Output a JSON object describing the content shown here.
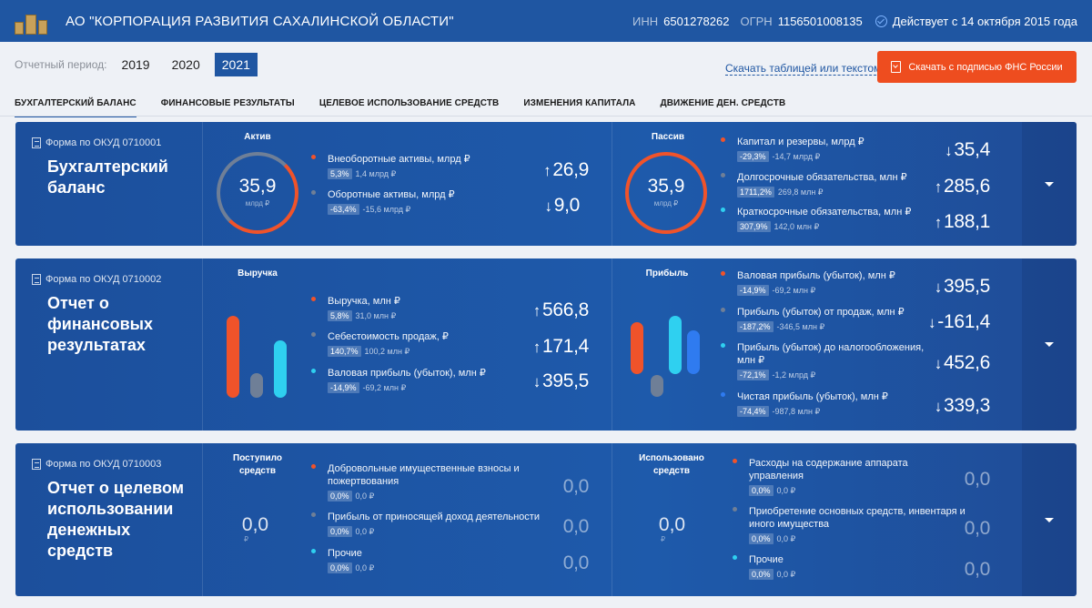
{
  "header": {
    "title": "АО \"КОРПОРАЦИЯ РАЗВИТИЯ САХАЛИНСКОЙ ОБЛАСТИ\"",
    "inn_label": "ИНН",
    "inn": "6501278262",
    "ogrn_label": "ОГРН",
    "ogrn": "1156501008135",
    "status": "Действует с 14 октября 2015 года"
  },
  "period": {
    "label": "Отчетный период:",
    "years": [
      "2019",
      "2020",
      "2021"
    ],
    "selected": "2021"
  },
  "download": {
    "link": "Скачать таблицей или текстом",
    "button": "Скачать с подписью ФНС России"
  },
  "tabs": [
    "БУХГАЛТЕРСКИЙ БАЛАНС",
    "ФИНАНСОВЫЕ РЕЗУЛЬТАТЫ",
    "ЦЕЛЕВОЕ ИСПОЛЬЗОВАНИЕ СРЕДСТВ",
    "ИЗМЕНЕНИЯ КАПИТАЛА",
    "ДВИЖЕНИЕ ДЕН. СРЕДСТВ"
  ],
  "colors": {
    "accent": "#1f56a2",
    "orange": "#f0532a",
    "grey": "#6f7f97",
    "cyan": "#2fd0f0",
    "blue": "#2f7bf0"
  },
  "cards": [
    {
      "okud": "Форма по ОКУД 0710001",
      "title": "Бухгалтерский баланс",
      "p1": {
        "title": "Актив",
        "ring_value": "35,9",
        "ring_unit": "млрд ₽",
        "items": [
          {
            "name": "Внеоборотные активы, млрд ₽",
            "badge": "5,3%",
            "sub": "1,4 млрд ₽",
            "arrow": "↑",
            "value": "26,9",
            "dot": "orange"
          },
          {
            "name": "Оборотные активы, млрд ₽",
            "badge": "-63,4%",
            "sub": "-15,6 млрд ₽",
            "arrow": "↓",
            "value": "9,0",
            "dot": "grey"
          }
        ]
      },
      "p2": {
        "title": "Пассив",
        "ring_value": "35,9",
        "ring_unit": "млрд ₽",
        "items": [
          {
            "name": "Капитал и резервы, млрд ₽",
            "badge": "-29,3%",
            "sub": "-14,7 млрд ₽",
            "arrow": "↓",
            "value": "35,4",
            "dot": "orange"
          },
          {
            "name": "Долгосрочные обязательства, млн ₽",
            "badge": "1711,2%",
            "sub": "269,8 млн ₽",
            "arrow": "↑",
            "value": "285,6",
            "dot": "grey"
          },
          {
            "name": "Краткосрочные обязательства, млн ₽",
            "badge": "307,9%",
            "sub": "142,0 млн ₽",
            "arrow": "↑",
            "value": "188,1",
            "dot": "cyan"
          }
        ]
      }
    },
    {
      "okud": "Форма по ОКУД 0710002",
      "title": "Отчет о финансовых результатах",
      "p1": {
        "title": "Выручка",
        "items": [
          {
            "name": "Выручка, млн ₽",
            "badge": "5,8%",
            "sub": "31,0 млн ₽",
            "arrow": "↑",
            "value": "566,8",
            "dot": "orange"
          },
          {
            "name": "Себестоимость продаж, ₽",
            "badge": "140,7%",
            "sub": "100,2 млн ₽",
            "arrow": "↑",
            "value": "171,4",
            "dot": "grey"
          },
          {
            "name": "Валовая прибыль (убыток), млн ₽",
            "badge": "-14,9%",
            "sub": "-69,2 млн ₽",
            "arrow": "↓",
            "value": "395,5",
            "dot": "cyan"
          }
        ]
      },
      "p2": {
        "title": "Прибыль",
        "items": [
          {
            "name": "Валовая прибыль (убыток), млн ₽",
            "badge": "-14,9%",
            "sub": "-69,2 млн ₽",
            "arrow": "↓",
            "value": "395,5",
            "dot": "orange"
          },
          {
            "name": "Прибыль (убыток) от продаж, млн ₽",
            "badge": "-187,2%",
            "sub": "-346,5 млн ₽",
            "arrow": "↓",
            "value": "-161,4",
            "dot": "grey"
          },
          {
            "name": "Прибыль (убыток) до налогообложения, млн ₽",
            "badge": "-72,1%",
            "sub": "-1,2 млрд ₽",
            "arrow": "↓",
            "value": "452,6",
            "dot": "cyan"
          },
          {
            "name": "Чистая прибыль (убыток), млн ₽",
            "badge": "-74,4%",
            "sub": "-987,8 млн ₽",
            "arrow": "↓",
            "value": "339,3",
            "dot": "blue"
          }
        ]
      }
    },
    {
      "okud": "Форма по ОКУД 0710003",
      "title": "Отчет о целевом использовании денежных средств",
      "p1": {
        "title": "Поступило средств",
        "total": "0,0",
        "total_unit": "₽",
        "items": [
          {
            "name": "Добровольные имущественные взносы и пожертвования",
            "badge": "0,0%",
            "sub": "0,0 ₽",
            "value": "0,0",
            "dot": "orange"
          },
          {
            "name": "Прибыль от приносящей доход деятельности",
            "badge": "0,0%",
            "sub": "0,0 ₽",
            "value": "0,0",
            "dot": "grey"
          },
          {
            "name": "Прочие",
            "badge": "0,0%",
            "sub": "0,0 ₽",
            "value": "0,0",
            "dot": "cyan"
          }
        ]
      },
      "p2": {
        "title": "Использовано средств",
        "total": "0,0",
        "total_unit": "₽",
        "items": [
          {
            "name": "Расходы на содержание аппарата управления",
            "badge": "0,0%",
            "sub": "0,0 ₽",
            "value": "0,0",
            "dot": "orange"
          },
          {
            "name": "Приобретение основных средств, инвентаря и иного имущества",
            "badge": "0,0%",
            "sub": "0,0 ₽",
            "value": "0,0",
            "dot": "grey"
          },
          {
            "name": "Прочие",
            "badge": "0,0%",
            "sub": "0,0 ₽",
            "value": "0,0",
            "dot": "cyan"
          }
        ]
      }
    }
  ]
}
